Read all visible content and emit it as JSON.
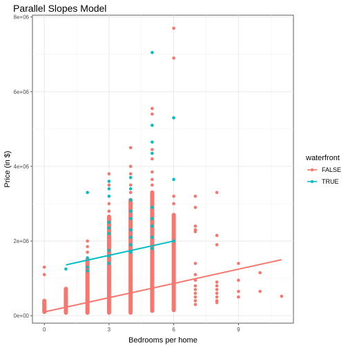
{
  "chart_data": {
    "type": "scatter",
    "title": "Parallel Slopes Model",
    "xlabel": "Bedrooms per home",
    "ylabel": "Price (in $)",
    "xlim": [
      -0.55,
      11.55
    ],
    "ylim": [
      -200000,
      8050000
    ],
    "x_ticks": [
      {
        "value": 0,
        "label": "0"
      },
      {
        "value": 3,
        "label": "3"
      },
      {
        "value": 6,
        "label": "6"
      },
      {
        "value": 9,
        "label": "9"
      }
    ],
    "y_ticks": [
      {
        "value": 0,
        "label": "0e+00"
      },
      {
        "value": 2000000,
        "label": "2e+06"
      },
      {
        "value": 4000000,
        "label": "4e+06"
      },
      {
        "value": 6000000,
        "label": "6e+06"
      },
      {
        "value": 8000000,
        "label": "8e+06"
      }
    ],
    "grid": true,
    "legend": {
      "title": "waterfront",
      "placement": "right"
    },
    "series": [
      {
        "name": "FALSE",
        "color": "#F8766D",
        "bands": [
          {
            "x": 0,
            "ymin": 100000,
            "ymax": 400000
          },
          {
            "x": 1,
            "ymin": 80000,
            "ymax": 720000
          },
          {
            "x": 2,
            "ymin": 80000,
            "ymax": 1500000
          },
          {
            "x": 3,
            "ymin": 80000,
            "ymax": 2650000
          },
          {
            "x": 4,
            "ymin": 80000,
            "ymax": 3100000
          },
          {
            "x": 5,
            "ymin": 130000,
            "ymax": 3300000
          },
          {
            "x": 6,
            "ymin": 150000,
            "ymax": 2700000
          }
        ],
        "points": [
          {
            "x": 0,
            "y": 1300000
          },
          {
            "x": 0,
            "y": 1100000
          },
          {
            "x": 2,
            "y": 2000000
          },
          {
            "x": 2,
            "y": 1850000
          },
          {
            "x": 2,
            "y": 1700000
          },
          {
            "x": 3,
            "y": 3800000
          },
          {
            "x": 3,
            "y": 3500000
          },
          {
            "x": 3,
            "y": 3000000
          },
          {
            "x": 3,
            "y": 2800000
          },
          {
            "x": 4,
            "y": 4500000
          },
          {
            "x": 4,
            "y": 4000000
          },
          {
            "x": 4,
            "y": 3800000
          },
          {
            "x": 4,
            "y": 3500000
          },
          {
            "x": 4,
            "y": 3300000
          },
          {
            "x": 5,
            "y": 5550000
          },
          {
            "x": 5,
            "y": 5400000
          },
          {
            "x": 5,
            "y": 4450000
          },
          {
            "x": 5,
            "y": 4200000
          },
          {
            "x": 5,
            "y": 3850000
          },
          {
            "x": 5,
            "y": 3650000
          },
          {
            "x": 5,
            "y": 3500000
          },
          {
            "x": 6,
            "y": 7700000
          },
          {
            "x": 6,
            "y": 6900000
          },
          {
            "x": 6,
            "y": 3200000
          },
          {
            "x": 6,
            "y": 3000000
          },
          {
            "x": 7,
            "y": 3200000
          },
          {
            "x": 7,
            "y": 2900000
          },
          {
            "x": 7,
            "y": 2400000
          },
          {
            "x": 7,
            "y": 2300000
          },
          {
            "x": 7,
            "y": 2250000
          },
          {
            "x": 7,
            "y": 1400000
          },
          {
            "x": 7,
            "y": 1100000
          },
          {
            "x": 7,
            "y": 950000
          },
          {
            "x": 7,
            "y": 800000
          },
          {
            "x": 7,
            "y": 700000
          },
          {
            "x": 7,
            "y": 600000
          },
          {
            "x": 7,
            "y": 500000
          },
          {
            "x": 7,
            "y": 400000
          },
          {
            "x": 7,
            "y": 300000
          },
          {
            "x": 8,
            "y": 3300000
          },
          {
            "x": 8,
            "y": 2150000
          },
          {
            "x": 8,
            "y": 1900000
          },
          {
            "x": 8,
            "y": 900000
          },
          {
            "x": 8,
            "y": 800000
          },
          {
            "x": 8,
            "y": 700000
          },
          {
            "x": 8,
            "y": 600000
          },
          {
            "x": 8,
            "y": 500000
          },
          {
            "x": 8,
            "y": 400000
          },
          {
            "x": 8,
            "y": 350000
          },
          {
            "x": 9,
            "y": 1400000
          },
          {
            "x": 9,
            "y": 950000
          },
          {
            "x": 9,
            "y": 650000
          },
          {
            "x": 9,
            "y": 500000
          },
          {
            "x": 10,
            "y": 1150000
          },
          {
            "x": 10,
            "y": 650000
          },
          {
            "x": 11,
            "y": 520000
          }
        ],
        "fit_line": {
          "x": [
            0,
            11
          ],
          "y": [
            100000,
            1500000
          ]
        }
      },
      {
        "name": "TRUE",
        "color": "#00BFC4",
        "points": [
          {
            "x": 1,
            "y": 1250000
          },
          {
            "x": 2,
            "y": 3300000
          },
          {
            "x": 2,
            "y": 1550000
          },
          {
            "x": 2,
            "y": 1300000
          },
          {
            "x": 2,
            "y": 1200000
          },
          {
            "x": 3,
            "y": 3600000
          },
          {
            "x": 3,
            "y": 3400000
          },
          {
            "x": 3,
            "y": 3200000
          },
          {
            "x": 3,
            "y": 2500000
          },
          {
            "x": 3,
            "y": 2350000
          },
          {
            "x": 3,
            "y": 2200000
          },
          {
            "x": 3,
            "y": 1750000
          },
          {
            "x": 3,
            "y": 1600000
          },
          {
            "x": 3,
            "y": 1400000
          },
          {
            "x": 4,
            "y": 3700000
          },
          {
            "x": 4,
            "y": 3400000
          },
          {
            "x": 4,
            "y": 3100000
          },
          {
            "x": 4,
            "y": 2800000
          },
          {
            "x": 4,
            "y": 2600000
          },
          {
            "x": 4,
            "y": 2300000
          },
          {
            "x": 4,
            "y": 2100000
          },
          {
            "x": 4,
            "y": 1900000
          },
          {
            "x": 4,
            "y": 1700000
          },
          {
            "x": 5,
            "y": 7050000
          },
          {
            "x": 5,
            "y": 5100000
          },
          {
            "x": 5,
            "y": 4650000
          },
          {
            "x": 5,
            "y": 4350000
          },
          {
            "x": 5,
            "y": 2900000
          },
          {
            "x": 5,
            "y": 2600000
          },
          {
            "x": 5,
            "y": 2400000
          },
          {
            "x": 5,
            "y": 2100000
          },
          {
            "x": 5,
            "y": 1800000
          },
          {
            "x": 6,
            "y": 5300000
          },
          {
            "x": 6,
            "y": 3650000
          },
          {
            "x": 6,
            "y": 2000000
          }
        ],
        "fit_line": {
          "x": [
            1,
            6
          ],
          "y": [
            1360000,
            2000000
          ]
        }
      }
    ]
  }
}
